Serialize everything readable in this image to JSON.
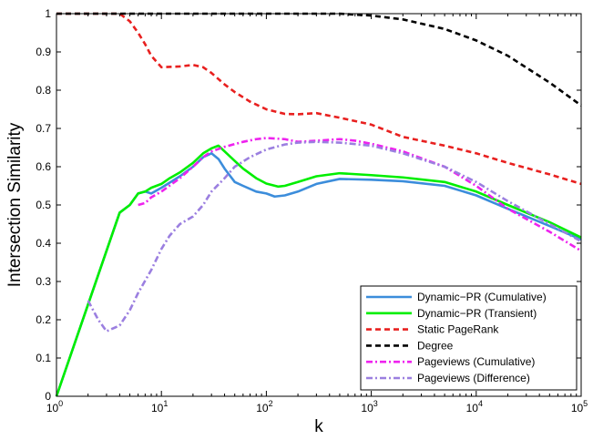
{
  "chart_data": {
    "type": "line",
    "xlabel": "k",
    "ylabel": "Intersection Similarity",
    "xscale": "log",
    "xlim": [
      1,
      100000
    ],
    "ylim": [
      0,
      1
    ],
    "grid": false,
    "legend_position": "bottom-right",
    "x_ticks": [
      {
        "value": 1,
        "base": "10",
        "exp": "0"
      },
      {
        "value": 10,
        "base": "10",
        "exp": "1"
      },
      {
        "value": 100,
        "base": "10",
        "exp": "2"
      },
      {
        "value": 1000,
        "base": "10",
        "exp": "3"
      },
      {
        "value": 10000,
        "base": "10",
        "exp": "4"
      },
      {
        "value": 100000,
        "base": "10",
        "exp": "5"
      }
    ],
    "y_ticks": [
      {
        "value": 0,
        "label": "0"
      },
      {
        "value": 0.1,
        "label": "0.1"
      },
      {
        "value": 0.2,
        "label": "0.2"
      },
      {
        "value": 0.3,
        "label": "0.3"
      },
      {
        "value": 0.4,
        "label": "0.4"
      },
      {
        "value": 0.5,
        "label": "0.5"
      },
      {
        "value": 0.6,
        "label": "0.6"
      },
      {
        "value": 0.7,
        "label": "0.7"
      },
      {
        "value": 0.8,
        "label": "0.8"
      },
      {
        "value": 0.9,
        "label": "0.9"
      },
      {
        "value": 1,
        "label": "1"
      }
    ],
    "series": [
      {
        "name": "Dynamic−PR (Cumulative)",
        "color": "#3c8ddb",
        "dash": "solid",
        "points": [
          [
            1,
            0
          ],
          [
            2,
            0.24
          ],
          [
            4,
            0.48
          ],
          [
            5,
            0.5
          ],
          [
            6,
            0.53
          ],
          [
            7,
            0.535
          ],
          [
            8,
            0.53
          ],
          [
            10,
            0.545
          ],
          [
            15,
            0.575
          ],
          [
            20,
            0.6
          ],
          [
            25,
            0.625
          ],
          [
            30,
            0.635
          ],
          [
            35,
            0.62
          ],
          [
            40,
            0.595
          ],
          [
            50,
            0.56
          ],
          [
            60,
            0.55
          ],
          [
            80,
            0.535
          ],
          [
            100,
            0.53
          ],
          [
            120,
            0.522
          ],
          [
            150,
            0.525
          ],
          [
            200,
            0.535
          ],
          [
            300,
            0.555
          ],
          [
            500,
            0.568
          ],
          [
            1000,
            0.566
          ],
          [
            2000,
            0.562
          ],
          [
            5000,
            0.55
          ],
          [
            10000,
            0.525
          ],
          [
            20000,
            0.49
          ],
          [
            50000,
            0.445
          ],
          [
            100000,
            0.41
          ]
        ]
      },
      {
        "name": "Dynamic−PR (Transient)",
        "color": "#00ee00",
        "dash": "solid",
        "points": [
          [
            1,
            0
          ],
          [
            2,
            0.24
          ],
          [
            4,
            0.48
          ],
          [
            5,
            0.5
          ],
          [
            6,
            0.53
          ],
          [
            7,
            0.535
          ],
          [
            8,
            0.545
          ],
          [
            10,
            0.555
          ],
          [
            12,
            0.57
          ],
          [
            15,
            0.585
          ],
          [
            20,
            0.61
          ],
          [
            25,
            0.635
          ],
          [
            30,
            0.648
          ],
          [
            35,
            0.655
          ],
          [
            40,
            0.64
          ],
          [
            50,
            0.615
          ],
          [
            60,
            0.595
          ],
          [
            80,
            0.57
          ],
          [
            100,
            0.556
          ],
          [
            130,
            0.548
          ],
          [
            150,
            0.55
          ],
          [
            200,
            0.56
          ],
          [
            300,
            0.575
          ],
          [
            500,
            0.583
          ],
          [
            1000,
            0.578
          ],
          [
            2000,
            0.572
          ],
          [
            5000,
            0.56
          ],
          [
            10000,
            0.535
          ],
          [
            20000,
            0.5
          ],
          [
            50000,
            0.455
          ],
          [
            100000,
            0.415
          ]
        ]
      },
      {
        "name": "Static PageRank",
        "color": "#e8201f",
        "dash": "6,4",
        "points": [
          [
            1,
            1
          ],
          [
            2,
            1
          ],
          [
            3,
            1
          ],
          [
            4,
            1
          ],
          [
            5,
            0.98
          ],
          [
            6,
            0.95
          ],
          [
            7,
            0.92
          ],
          [
            8,
            0.89
          ],
          [
            10,
            0.86
          ],
          [
            15,
            0.862
          ],
          [
            20,
            0.866
          ],
          [
            25,
            0.86
          ],
          [
            30,
            0.845
          ],
          [
            40,
            0.815
          ],
          [
            50,
            0.795
          ],
          [
            70,
            0.77
          ],
          [
            100,
            0.75
          ],
          [
            150,
            0.738
          ],
          [
            200,
            0.737
          ],
          [
            300,
            0.74
          ],
          [
            500,
            0.728
          ],
          [
            1000,
            0.71
          ],
          [
            2000,
            0.678
          ],
          [
            5000,
            0.655
          ],
          [
            10000,
            0.635
          ],
          [
            20000,
            0.61
          ],
          [
            50000,
            0.58
          ],
          [
            100000,
            0.555
          ]
        ]
      },
      {
        "name": "Degree",
        "color": "#000000",
        "dash": "6,4",
        "points": [
          [
            1,
            1
          ],
          [
            10,
            1
          ],
          [
            100,
            1
          ],
          [
            500,
            1
          ],
          [
            1000,
            0.995
          ],
          [
            2000,
            0.985
          ],
          [
            5000,
            0.96
          ],
          [
            10000,
            0.93
          ],
          [
            20000,
            0.89
          ],
          [
            50000,
            0.82
          ],
          [
            100000,
            0.76
          ]
        ]
      },
      {
        "name": "Pageviews (Cumulative)",
        "color": "#ee22ee",
        "dash": "7,3,2,3",
        "points": [
          [
            6,
            0.5
          ],
          [
            7,
            0.505
          ],
          [
            8,
            0.52
          ],
          [
            10,
            0.535
          ],
          [
            15,
            0.57
          ],
          [
            20,
            0.6
          ],
          [
            25,
            0.625
          ],
          [
            30,
            0.64
          ],
          [
            40,
            0.652
          ],
          [
            60,
            0.665
          ],
          [
            80,
            0.672
          ],
          [
            100,
            0.675
          ],
          [
            150,
            0.672
          ],
          [
            200,
            0.665
          ],
          [
            300,
            0.668
          ],
          [
            500,
            0.672
          ],
          [
            700,
            0.668
          ],
          [
            1000,
            0.66
          ],
          [
            2000,
            0.64
          ],
          [
            5000,
            0.6
          ],
          [
            10000,
            0.55
          ],
          [
            20000,
            0.49
          ],
          [
            50000,
            0.43
          ],
          [
            100000,
            0.38
          ]
        ]
      },
      {
        "name": "Pageviews (Difference)",
        "color": "#9b7fe0",
        "dash": "7,3,2,3",
        "points": [
          [
            2,
            0.25
          ],
          [
            2.5,
            0.2
          ],
          [
            3,
            0.17
          ],
          [
            4,
            0.185
          ],
          [
            5,
            0.225
          ],
          [
            6,
            0.27
          ],
          [
            8,
            0.33
          ],
          [
            10,
            0.385
          ],
          [
            12,
            0.42
          ],
          [
            15,
            0.45
          ],
          [
            20,
            0.47
          ],
          [
            25,
            0.5
          ],
          [
            30,
            0.535
          ],
          [
            40,
            0.57
          ],
          [
            50,
            0.6
          ],
          [
            70,
            0.625
          ],
          [
            100,
            0.645
          ],
          [
            150,
            0.658
          ],
          [
            200,
            0.663
          ],
          [
            300,
            0.665
          ],
          [
            500,
            0.663
          ],
          [
            1000,
            0.655
          ],
          [
            2000,
            0.635
          ],
          [
            5000,
            0.6
          ],
          [
            10000,
            0.56
          ],
          [
            20000,
            0.51
          ],
          [
            50000,
            0.45
          ],
          [
            100000,
            0.405
          ]
        ]
      }
    ]
  }
}
